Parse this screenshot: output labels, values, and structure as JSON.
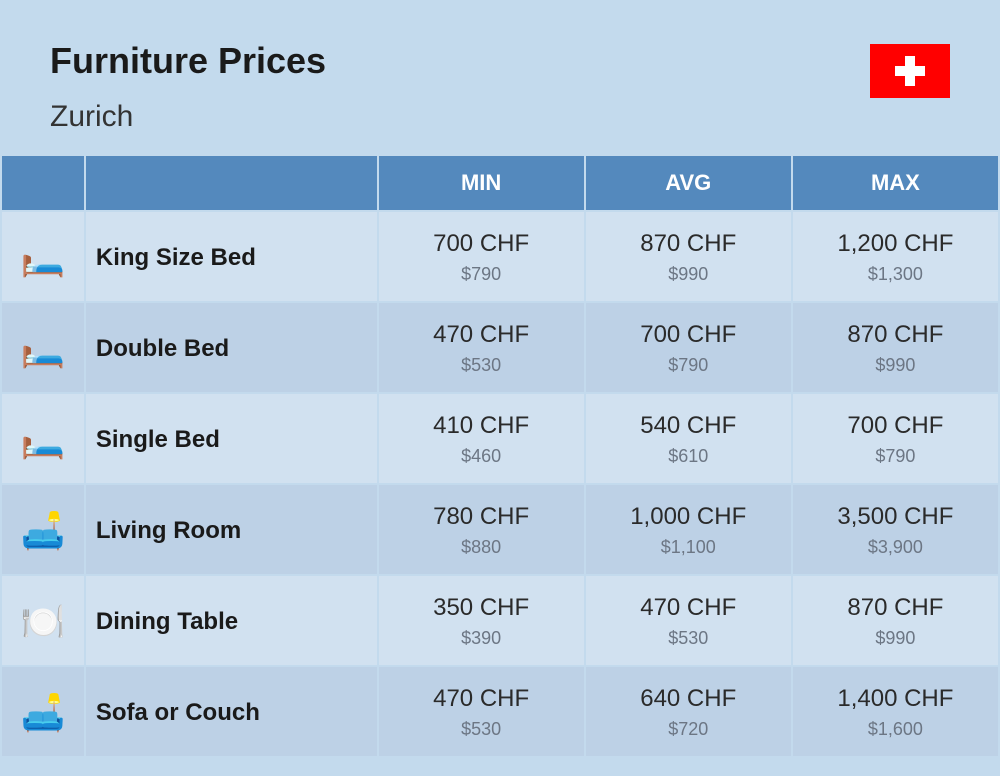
{
  "header": {
    "title": "Furniture Prices",
    "subtitle": "Zurich",
    "flag": {
      "country": "Switzerland",
      "bg": "#ff0000",
      "cross": "#ffffff"
    }
  },
  "table": {
    "columns": [
      {
        "key": "min",
        "label": "MIN"
      },
      {
        "key": "avg",
        "label": "AVG"
      },
      {
        "key": "max",
        "label": "MAX"
      }
    ],
    "header_bg": "#5489bd",
    "header_text_color": "#ffffff",
    "row_bg_odd": "#d1e1f0",
    "row_bg_even": "#bdd1e6",
    "primary_text_color": "#2a2a2a",
    "secondary_text_color": "#6c7684",
    "rows": [
      {
        "icon": "🛏️",
        "name": "King Size Bed",
        "min": {
          "primary": "700 CHF",
          "secondary": "$790"
        },
        "avg": {
          "primary": "870 CHF",
          "secondary": "$990"
        },
        "max": {
          "primary": "1,200 CHF",
          "secondary": "$1,300"
        }
      },
      {
        "icon": "🛏️",
        "name": "Double Bed",
        "min": {
          "primary": "470 CHF",
          "secondary": "$530"
        },
        "avg": {
          "primary": "700 CHF",
          "secondary": "$790"
        },
        "max": {
          "primary": "870 CHF",
          "secondary": "$990"
        }
      },
      {
        "icon": "🛏️",
        "name": "Single Bed",
        "min": {
          "primary": "410 CHF",
          "secondary": "$460"
        },
        "avg": {
          "primary": "540 CHF",
          "secondary": "$610"
        },
        "max": {
          "primary": "700 CHF",
          "secondary": "$790"
        }
      },
      {
        "icon": "🛋️",
        "name": "Living Room",
        "min": {
          "primary": "780 CHF",
          "secondary": "$880"
        },
        "avg": {
          "primary": "1,000 CHF",
          "secondary": "$1,100"
        },
        "max": {
          "primary": "3,500 CHF",
          "secondary": "$3,900"
        }
      },
      {
        "icon": "🍽️",
        "name": "Dining Table",
        "min": {
          "primary": "350 CHF",
          "secondary": "$390"
        },
        "avg": {
          "primary": "470 CHF",
          "secondary": "$530"
        },
        "max": {
          "primary": "870 CHF",
          "secondary": "$990"
        }
      },
      {
        "icon": "🛋️",
        "name": "Sofa or Couch",
        "min": {
          "primary": "470 CHF",
          "secondary": "$530"
        },
        "avg": {
          "primary": "640 CHF",
          "secondary": "$720"
        },
        "max": {
          "primary": "1,400 CHF",
          "secondary": "$1,600"
        }
      }
    ]
  }
}
